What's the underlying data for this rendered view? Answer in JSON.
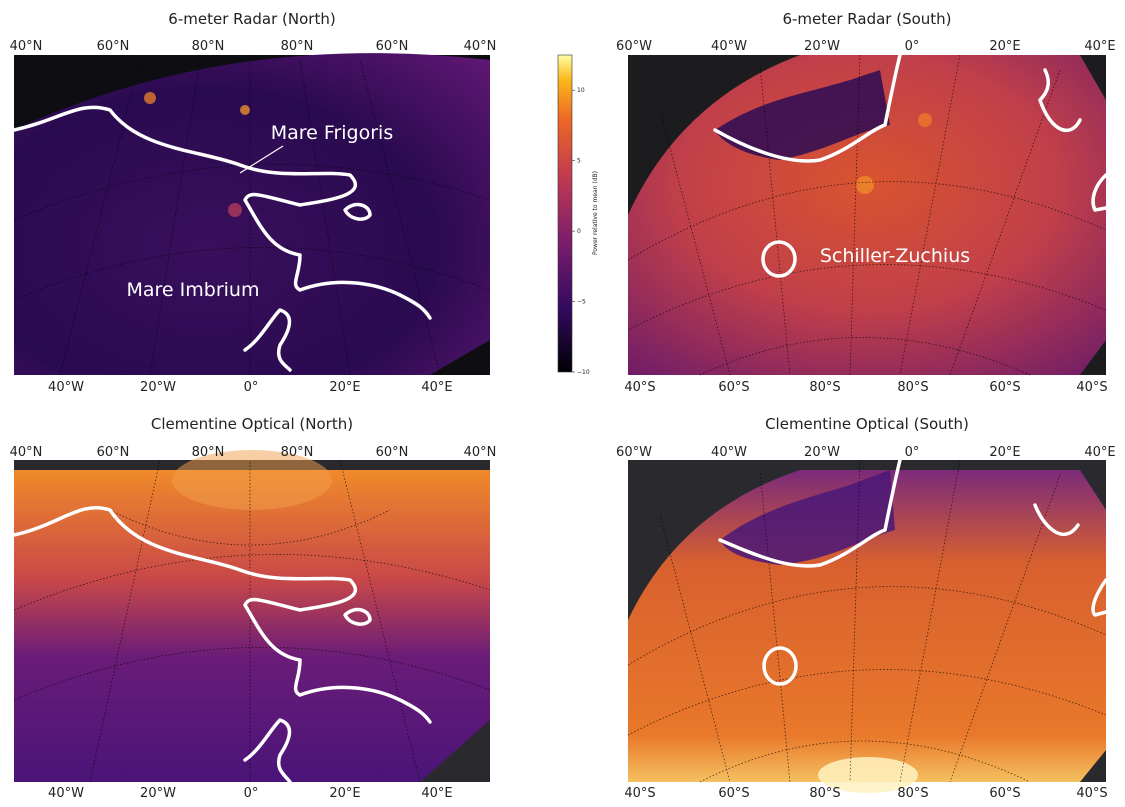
{
  "colorbar": {
    "label": "Power relative to mean (dB)",
    "lim": [
      -10,
      12.5
    ],
    "ticks": [
      10,
      5,
      0,
      {
        "value": -5,
        "label": "−5"
      },
      {
        "value": -10,
        "label": "−10"
      }
    ]
  },
  "panels": [
    {
      "title": "6-meter Radar (North)",
      "top_labels": [
        "40°N",
        "60°N",
        "80°N",
        "80°N",
        "60°N",
        "40°N"
      ],
      "bottom_labels": [
        "40°W",
        "20°W",
        "0°",
        "20°E",
        "40°E"
      ],
      "annotations": [
        "Mare Frigoris",
        "Mare Imbrium"
      ]
    },
    {
      "title": "6-meter Radar (South)",
      "top_labels": [
        "60°W",
        "40°W",
        "20°W",
        "0°",
        "20°E",
        "40°E"
      ],
      "bottom_labels": [
        "40°S",
        "60°S",
        "80°S",
        "80°S",
        "60°S",
        "40°S"
      ],
      "annotations": [
        "Schiller-Zuchius"
      ]
    },
    {
      "title": "Clementine Optical (North)",
      "top_labels": [
        "40°N",
        "60°N",
        "80°N",
        "80°N",
        "60°N",
        "40°N"
      ],
      "bottom_labels": [
        "40°W",
        "20°W",
        "0°",
        "20°E",
        "40°E"
      ],
      "annotations": []
    },
    {
      "title": "Clementine Optical (South)",
      "top_labels": [
        "60°W",
        "40°W",
        "20°W",
        "0°",
        "20°E",
        "40°E"
      ],
      "bottom_labels": [
        "40°S",
        "60°S",
        "80°S",
        "80°S",
        "60°S",
        "40°S"
      ],
      "annotations": []
    }
  ]
}
